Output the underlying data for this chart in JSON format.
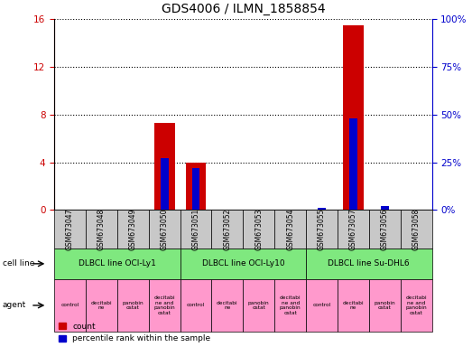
{
  "title": "GDS4006 / ILMN_1858854",
  "samples": [
    "GSM673047",
    "GSM673048",
    "GSM673049",
    "GSM673050",
    "GSM673051",
    "GSM673052",
    "GSM673053",
    "GSM673054",
    "GSM673055",
    "GSM673057",
    "GSM673056",
    "GSM673058"
  ],
  "count_values": [
    0,
    0,
    0,
    7.3,
    4.0,
    0,
    0,
    0,
    0,
    15.5,
    0,
    0
  ],
  "percentile_values": [
    0,
    0,
    0,
    27,
    22,
    0,
    0,
    0,
    1.0,
    48,
    2.0,
    0
  ],
  "ylim_left": [
    0,
    16
  ],
  "ylim_right": [
    0,
    100
  ],
  "yticks_left": [
    0,
    4,
    8,
    12,
    16
  ],
  "yticks_right": [
    0,
    25,
    50,
    75,
    100
  ],
  "cell_line_groups": [
    {
      "label": "DLBCL line OCI-Ly1",
      "start": 0,
      "end": 4
    },
    {
      "label": "DLBCL line OCI-Ly10",
      "start": 4,
      "end": 8
    },
    {
      "label": "DLBCL line Su-DHL6",
      "start": 8,
      "end": 12
    }
  ],
  "agent_labels": [
    "control",
    "decitabi\nne",
    "panobin\nostat",
    "decitabi\nne and\npanobin\nostat"
  ],
  "bar_color_red": "#CC0000",
  "bar_color_blue": "#0000CC",
  "sample_bg_color": "#C8C8C8",
  "cell_line_bg": "#7FE87F",
  "agent_bg": "#FF99CC",
  "left_axis_color": "#CC0000",
  "right_axis_color": "#0000CC",
  "legend_red_label": "count",
  "legend_blue_label": "percentile rank within the sample"
}
